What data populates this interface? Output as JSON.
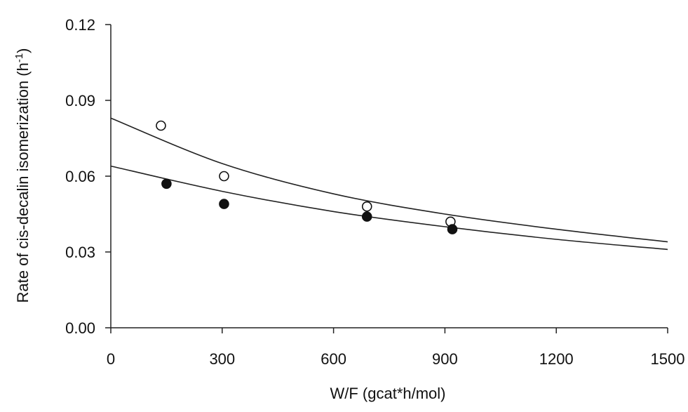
{
  "chart_data": {
    "type": "scatter",
    "title": "",
    "xlabel": "W/F (gcat*h/mol)",
    "ylabel_main": "Rate of cis-decalin isomerization (h",
    "ylabel_sup": "-1",
    "ylabel_close": ")",
    "xlim": [
      0,
      1500
    ],
    "ylim": [
      0,
      0.12
    ],
    "x_ticks": [
      "0",
      "300",
      "600",
      "900",
      "1200",
      "1500"
    ],
    "y_ticks": [
      "0.00",
      "0.03",
      "0.06",
      "0.09",
      "0.12"
    ],
    "grid": false,
    "legend": "none",
    "series": [
      {
        "marker": "open-circle",
        "color": "#111111",
        "points": [
          {
            "x": 135,
            "y": 0.08
          },
          {
            "x": 305,
            "y": 0.06
          },
          {
            "x": 690,
            "y": 0.048
          },
          {
            "x": 915,
            "y": 0.042
          }
        ],
        "fit_curve": [
          {
            "x": 0,
            "y": 0.083
          },
          {
            "x": 300,
            "y": 0.065
          },
          {
            "x": 600,
            "y": 0.053
          },
          {
            "x": 900,
            "y": 0.045
          },
          {
            "x": 1200,
            "y": 0.039
          },
          {
            "x": 1500,
            "y": 0.034
          }
        ]
      },
      {
        "marker": "filled-circle",
        "color": "#111111",
        "points": [
          {
            "x": 150,
            "y": 0.057
          },
          {
            "x": 305,
            "y": 0.049
          },
          {
            "x": 690,
            "y": 0.044
          },
          {
            "x": 920,
            "y": 0.039
          }
        ],
        "fit_curve": [
          {
            "x": 0,
            "y": 0.064
          },
          {
            "x": 300,
            "y": 0.054
          },
          {
            "x": 600,
            "y": 0.046
          },
          {
            "x": 900,
            "y": 0.04
          },
          {
            "x": 1200,
            "y": 0.035
          },
          {
            "x": 1500,
            "y": 0.031
          }
        ]
      }
    ]
  }
}
